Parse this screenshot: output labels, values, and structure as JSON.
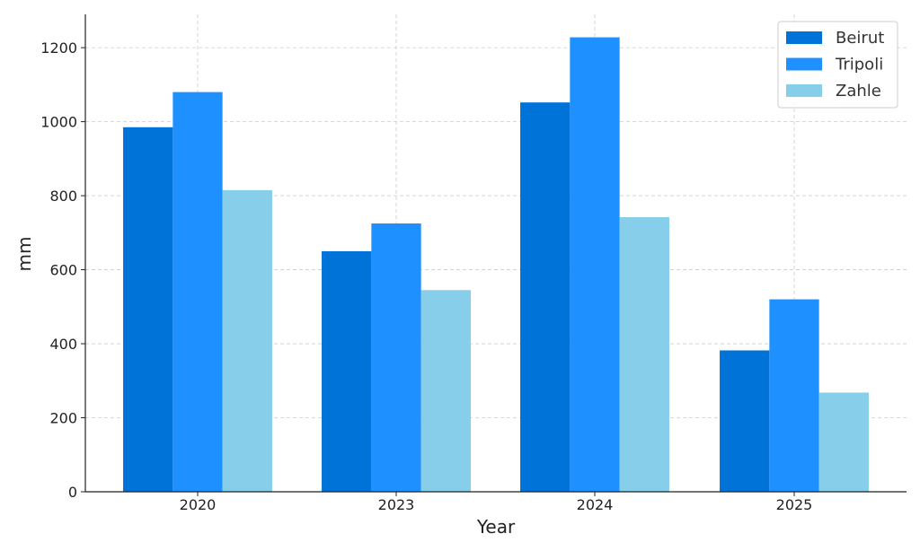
{
  "chart_data": {
    "type": "bar",
    "title": "",
    "xlabel": "Year",
    "ylabel": "mm",
    "categories": [
      "2020",
      "2023",
      "2024",
      "2025"
    ],
    "series": [
      {
        "name": "Beirut",
        "color": "#0073d9",
        "values": [
          985,
          650,
          1052,
          382
        ]
      },
      {
        "name": "Tripoli",
        "color": "#1e90ff",
        "values": [
          1080,
          725,
          1228,
          520
        ]
      },
      {
        "name": "Zahle",
        "color": "#87ceeb",
        "values": [
          815,
          545,
          742,
          268
        ]
      }
    ],
    "ylim": [
      0,
      1290
    ],
    "yticks": [
      0,
      200,
      400,
      600,
      800,
      1000,
      1200
    ],
    "grid": true,
    "legend_position": "top-right"
  }
}
